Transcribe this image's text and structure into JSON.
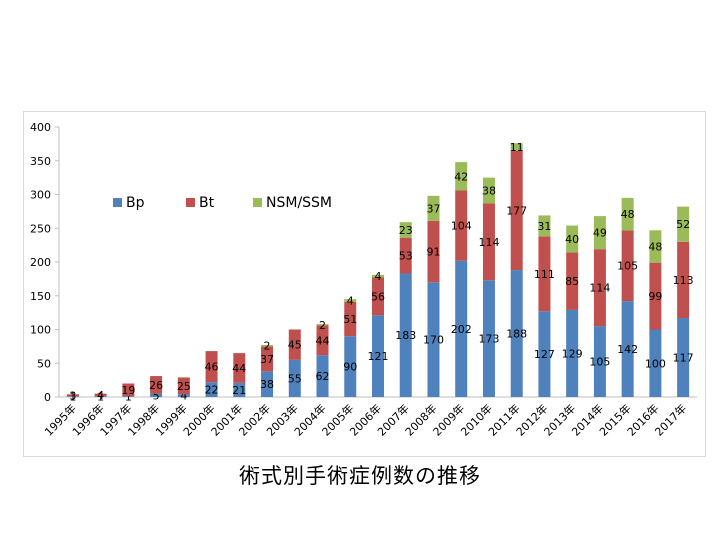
{
  "caption": "術式別手術症例数の推移",
  "chart_data": {
    "type": "bar",
    "stacked": true,
    "title": "",
    "xlabel": "",
    "ylabel": "",
    "ylim": [
      0,
      400
    ],
    "yticks": [
      0,
      50,
      100,
      150,
      200,
      250,
      300,
      350,
      400
    ],
    "grid": false,
    "legend_position": "upper-left",
    "categories": [
      "1995年",
      "1996年",
      "1997年",
      "1998年",
      "1999年",
      "2000年",
      "2001年",
      "2002年",
      "2003年",
      "2004年",
      "2005年",
      "2006年",
      "2007年",
      "2008年",
      "2009年",
      "2010年",
      "2011年",
      "2012年",
      "2013年",
      "2014年",
      "2015年",
      "2016年",
      "2017年"
    ],
    "series": [
      {
        "name": "Bp",
        "color": "#4f81bd",
        "values": [
          1,
          1,
          1,
          5,
          4,
          22,
          21,
          38,
          55,
          62,
          90,
          121,
          183,
          170,
          202,
          173,
          188,
          127,
          129,
          105,
          142,
          100,
          117
        ]
      },
      {
        "name": "Bt",
        "color": "#c0504d",
        "values": [
          3,
          4,
          19,
          26,
          25,
          46,
          44,
          37,
          45,
          44,
          51,
          56,
          53,
          91,
          104,
          114,
          177,
          111,
          85,
          114,
          105,
          99,
          113
        ]
      },
      {
        "name": "NSM/SSM",
        "color": "#9bbb59",
        "values": [
          0,
          0,
          0,
          0,
          0,
          0,
          0,
          2,
          0,
          2,
          4,
          4,
          23,
          37,
          42,
          38,
          11,
          31,
          40,
          49,
          48,
          48,
          52
        ]
      }
    ]
  }
}
